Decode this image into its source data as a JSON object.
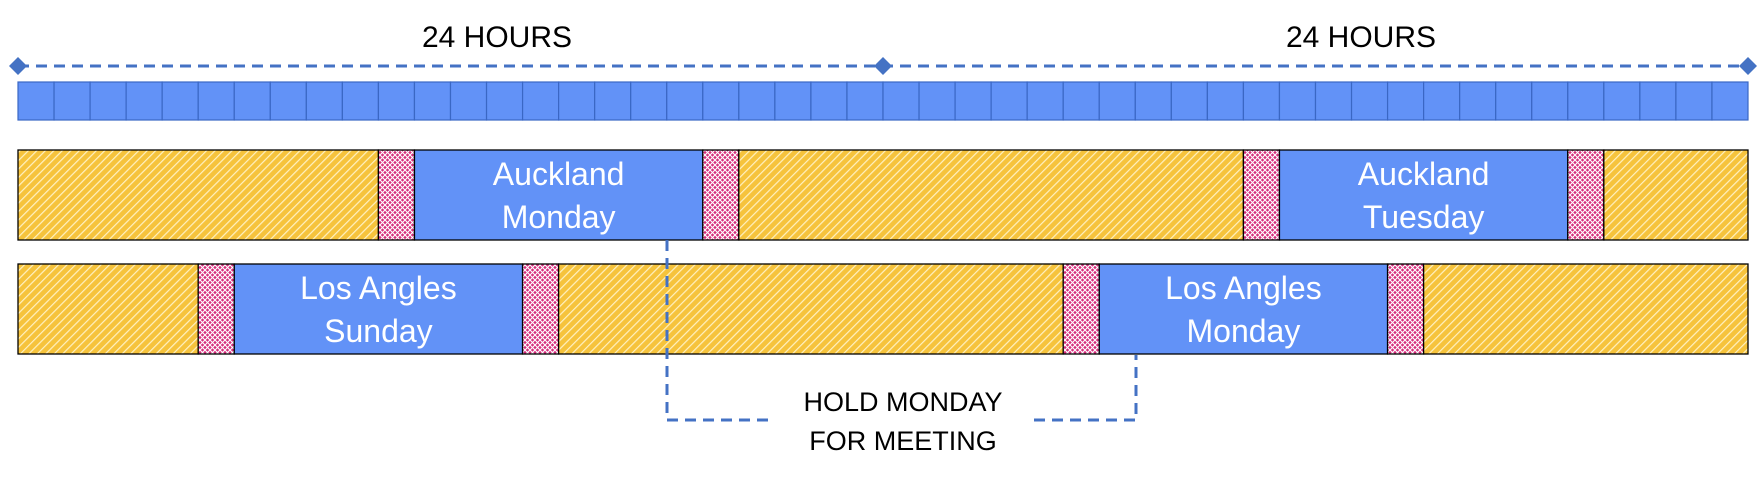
{
  "header": {
    "left_label": "24 HOURS",
    "right_label": "24 HOURS"
  },
  "hour_blocks": 48,
  "rows": [
    {
      "name": "auckland",
      "segments": [
        {
          "type": "night",
          "from": 0,
          "to": 10
        },
        {
          "type": "transition",
          "from": 10,
          "to": 11
        },
        {
          "type": "day",
          "from": 11,
          "to": 19,
          "line1": "Auckland",
          "line2": "Monday"
        },
        {
          "type": "transition",
          "from": 19,
          "to": 20
        },
        {
          "type": "night",
          "from": 20,
          "to": 34
        },
        {
          "type": "transition",
          "from": 34,
          "to": 35
        },
        {
          "type": "day",
          "from": 35,
          "to": 43,
          "line1": "Auckland",
          "line2": "Tuesday"
        },
        {
          "type": "transition",
          "from": 43,
          "to": 44
        },
        {
          "type": "night",
          "from": 44,
          "to": 48
        }
      ]
    },
    {
      "name": "los-angeles",
      "segments": [
        {
          "type": "night",
          "from": 0,
          "to": 5
        },
        {
          "type": "transition",
          "from": 5,
          "to": 6
        },
        {
          "type": "day",
          "from": 6,
          "to": 14,
          "line1": "Los Angles",
          "line2": "Sunday"
        },
        {
          "type": "transition",
          "from": 14,
          "to": 15
        },
        {
          "type": "night",
          "from": 15,
          "to": 29
        },
        {
          "type": "transition",
          "from": 29,
          "to": 30
        },
        {
          "type": "day",
          "from": 30,
          "to": 38,
          "line1": "Los Angles",
          "line2": "Monday"
        },
        {
          "type": "transition",
          "from": 38,
          "to": 39
        },
        {
          "type": "night",
          "from": 39,
          "to": 48
        }
      ]
    }
  ],
  "callout": {
    "line1": "HOLD MONDAY",
    "line2": "FOR MEETING"
  },
  "colors": {
    "blue": "#6292f7",
    "blue_dark": "#3a67c4",
    "night_bg": "#f6c33c",
    "night_hatch": "#ffe7a3",
    "transition_bg": "#d62c7c",
    "transition_hatch": "#ffffff",
    "day_text": "#ffffff",
    "text": "#000000"
  }
}
